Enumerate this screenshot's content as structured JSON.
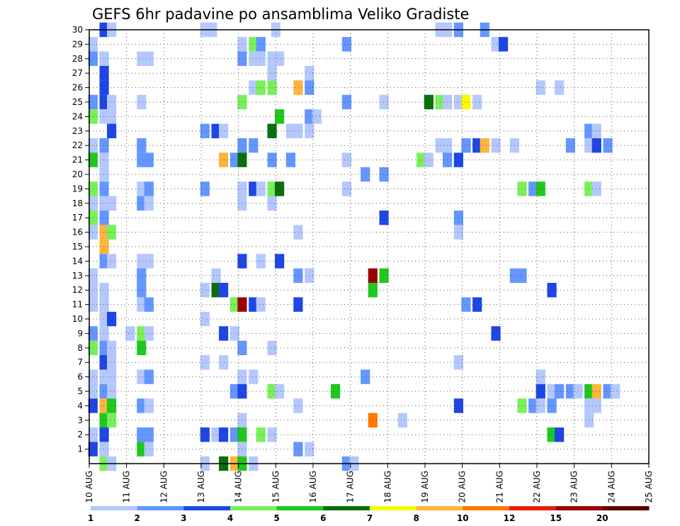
{
  "chart_data": {
    "type": "heatmap",
    "title": "GEFS 6hr padavine po ansamblima Veliko Gradiste",
    "x_tick_labels": [
      "10 AUG",
      "11 AUG",
      "12 AUG",
      "13 AUG",
      "14 AUG",
      "15 AUG",
      "16 AUG",
      "17 AUG",
      "18 AUG",
      "19 AUG",
      "20 AUG",
      "21 AUG",
      "22 AUG",
      "23 AUG",
      "24 AUG",
      "25 AUG"
    ],
    "x_range_days": [
      10,
      25
    ],
    "y_tick_labels": [
      "1",
      "2",
      "3",
      "4",
      "5",
      "6",
      "7",
      "8",
      "9",
      "10",
      "11",
      "12",
      "13",
      "14",
      "15",
      "16",
      "17",
      "18",
      "19",
      "20",
      "21",
      "22",
      "23",
      "24",
      "25",
      "26",
      "27",
      "28",
      "29",
      "30"
    ],
    "y_range": [
      0,
      30
    ],
    "grid": true,
    "colorbar": {
      "labels": [
        "1",
        "2",
        "3",
        "4",
        "5",
        "6",
        "7",
        "8",
        "10",
        "12",
        "15",
        "20"
      ],
      "colors": [
        "#b4c8ff",
        "#6496ff",
        "#1e46e6",
        "#78f05a",
        "#1ec81e",
        "#0a6e0a",
        "#fafa00",
        "#ffb43c",
        "#ff7800",
        "#e61e00",
        "#9b0000",
        "#5a0000"
      ]
    },
    "cells": [
      [
        10.4,
        30,
        2
      ],
      [
        10.6,
        30,
        0
      ],
      [
        13.1,
        30,
        0
      ],
      [
        13.3,
        30,
        0
      ],
      [
        15.0,
        30,
        0
      ],
      [
        19.4,
        30,
        0
      ],
      [
        19.6,
        30,
        0
      ],
      [
        19.9,
        30,
        1
      ],
      [
        20.6,
        30,
        1
      ],
      [
        10.1,
        29,
        0
      ],
      [
        14.1,
        29,
        0
      ],
      [
        14.4,
        29,
        3
      ],
      [
        14.6,
        29,
        1
      ],
      [
        16.9,
        29,
        1
      ],
      [
        20.9,
        29,
        0
      ],
      [
        21.1,
        29,
        2
      ],
      [
        10.1,
        28,
        1
      ],
      [
        10.4,
        28,
        0
      ],
      [
        11.4,
        28,
        0
      ],
      [
        11.6,
        28,
        0
      ],
      [
        14.1,
        28,
        1
      ],
      [
        14.4,
        28,
        0
      ],
      [
        14.6,
        28,
        0
      ],
      [
        14.9,
        28,
        0
      ],
      [
        15.1,
        28,
        0
      ],
      [
        10.4,
        27,
        2
      ],
      [
        14.9,
        27,
        0
      ],
      [
        15.9,
        27,
        0
      ],
      [
        10.4,
        26,
        2
      ],
      [
        14.4,
        26,
        0
      ],
      [
        14.6,
        26,
        3
      ],
      [
        14.9,
        26,
        3
      ],
      [
        15.6,
        26,
        7
      ],
      [
        15.9,
        26,
        1
      ],
      [
        22.1,
        26,
        0
      ],
      [
        22.6,
        26,
        0
      ],
      [
        10.1,
        25,
        1
      ],
      [
        10.4,
        25,
        2
      ],
      [
        10.6,
        25,
        0
      ],
      [
        11.4,
        25,
        0
      ],
      [
        14.1,
        25,
        3
      ],
      [
        16.9,
        25,
        1
      ],
      [
        17.9,
        25,
        0
      ],
      [
        19.1,
        25,
        5
      ],
      [
        19.4,
        25,
        3
      ],
      [
        19.6,
        25,
        0
      ],
      [
        19.9,
        25,
        0
      ],
      [
        20.1,
        25,
        6
      ],
      [
        20.4,
        25,
        0
      ],
      [
        10.1,
        24,
        3
      ],
      [
        10.4,
        24,
        0
      ],
      [
        10.6,
        24,
        0
      ],
      [
        15.1,
        24,
        4
      ],
      [
        15.9,
        24,
        1
      ],
      [
        16.1,
        24,
        0
      ],
      [
        10.6,
        23,
        2
      ],
      [
        13.1,
        23,
        1
      ],
      [
        13.4,
        23,
        2
      ],
      [
        13.6,
        23,
        0
      ],
      [
        14.9,
        23,
        5
      ],
      [
        15.4,
        23,
        0
      ],
      [
        15.6,
        23,
        0
      ],
      [
        15.9,
        23,
        0
      ],
      [
        23.4,
        23,
        1
      ],
      [
        23.6,
        23,
        0
      ],
      [
        10.1,
        22,
        0
      ],
      [
        10.4,
        22,
        1
      ],
      [
        11.4,
        22,
        1
      ],
      [
        14.1,
        22,
        1
      ],
      [
        14.4,
        22,
        1
      ],
      [
        19.4,
        22,
        0
      ],
      [
        19.6,
        22,
        0
      ],
      [
        20.1,
        22,
        1
      ],
      [
        20.4,
        22,
        2
      ],
      [
        20.6,
        22,
        7
      ],
      [
        20.9,
        22,
        0
      ],
      [
        21.4,
        22,
        0
      ],
      [
        22.9,
        22,
        1
      ],
      [
        23.4,
        22,
        0
      ],
      [
        23.6,
        22,
        2
      ],
      [
        23.9,
        22,
        1
      ],
      [
        10.1,
        21,
        4
      ],
      [
        10.4,
        21,
        0
      ],
      [
        11.4,
        21,
        1
      ],
      [
        11.6,
        21,
        1
      ],
      [
        13.6,
        21,
        7
      ],
      [
        13.9,
        21,
        1
      ],
      [
        14.1,
        21,
        5
      ],
      [
        14.9,
        21,
        1
      ],
      [
        15.4,
        21,
        1
      ],
      [
        16.9,
        21,
        0
      ],
      [
        18.9,
        21,
        3
      ],
      [
        19.1,
        21,
        0
      ],
      [
        19.6,
        21,
        1
      ],
      [
        19.9,
        21,
        2
      ],
      [
        10.4,
        20,
        0
      ],
      [
        17.4,
        20,
        1
      ],
      [
        17.9,
        20,
        1
      ],
      [
        10.1,
        19,
        3
      ],
      [
        10.4,
        19,
        1
      ],
      [
        11.4,
        19,
        0
      ],
      [
        11.6,
        19,
        1
      ],
      [
        13.1,
        19,
        1
      ],
      [
        14.1,
        19,
        0
      ],
      [
        14.4,
        19,
        2
      ],
      [
        14.6,
        19,
        0
      ],
      [
        14.9,
        19,
        3
      ],
      [
        15.1,
        19,
        5
      ],
      [
        16.9,
        19,
        0
      ],
      [
        21.6,
        19,
        3
      ],
      [
        21.9,
        19,
        1
      ],
      [
        22.1,
        19,
        4
      ],
      [
        23.4,
        19,
        3
      ],
      [
        23.6,
        19,
        0
      ],
      [
        10.1,
        18,
        0
      ],
      [
        10.4,
        18,
        0
      ],
      [
        10.6,
        18,
        0
      ],
      [
        11.4,
        18,
        1
      ],
      [
        11.6,
        18,
        0
      ],
      [
        14.1,
        18,
        0
      ],
      [
        14.9,
        18,
        0
      ],
      [
        10.1,
        17,
        3
      ],
      [
        10.4,
        17,
        1
      ],
      [
        17.9,
        17,
        2
      ],
      [
        19.9,
        17,
        1
      ],
      [
        10.1,
        16,
        0
      ],
      [
        10.4,
        16,
        7
      ],
      [
        10.6,
        16,
        3
      ],
      [
        15.6,
        16,
        0
      ],
      [
        19.9,
        16,
        0
      ],
      [
        10.4,
        15,
        7
      ],
      [
        10.4,
        14,
        1
      ],
      [
        10.6,
        14,
        0
      ],
      [
        11.4,
        14,
        0
      ],
      [
        11.6,
        14,
        0
      ],
      [
        14.1,
        14,
        2
      ],
      [
        14.6,
        14,
        0
      ],
      [
        15.1,
        14,
        2
      ],
      [
        10.1,
        13,
        0
      ],
      [
        11.4,
        13,
        1
      ],
      [
        13.4,
        13,
        0
      ],
      [
        15.6,
        13,
        1
      ],
      [
        15.9,
        13,
        0
      ],
      [
        17.6,
        13,
        10
      ],
      [
        17.9,
        13,
        4
      ],
      [
        21.4,
        13,
        1
      ],
      [
        21.6,
        13,
        1
      ],
      [
        10.1,
        12,
        0
      ],
      [
        10.4,
        12,
        0
      ],
      [
        11.4,
        12,
        1
      ],
      [
        13.1,
        12,
        0
      ],
      [
        13.4,
        12,
        5
      ],
      [
        13.6,
        12,
        2
      ],
      [
        17.6,
        12,
        4
      ],
      [
        22.4,
        12,
        2
      ],
      [
        10.1,
        11,
        0
      ],
      [
        10.4,
        11,
        0
      ],
      [
        11.4,
        11,
        0
      ],
      [
        11.6,
        11,
        1
      ],
      [
        13.9,
        11,
        3
      ],
      [
        14.1,
        11,
        10
      ],
      [
        14.4,
        11,
        2
      ],
      [
        14.6,
        11,
        0
      ],
      [
        15.6,
        11,
        2
      ],
      [
        20.1,
        11,
        1
      ],
      [
        20.4,
        11,
        2
      ],
      [
        10.4,
        10,
        0
      ],
      [
        10.6,
        10,
        2
      ],
      [
        13.1,
        10,
        0
      ],
      [
        10.1,
        9,
        1
      ],
      [
        10.4,
        9,
        0
      ],
      [
        11.1,
        9,
        0
      ],
      [
        11.4,
        9,
        3
      ],
      [
        11.6,
        9,
        0
      ],
      [
        13.6,
        9,
        2
      ],
      [
        13.9,
        9,
        0
      ],
      [
        20.9,
        9,
        2
      ],
      [
        10.1,
        8,
        3
      ],
      [
        10.4,
        8,
        1
      ],
      [
        10.6,
        8,
        0
      ],
      [
        11.4,
        8,
        4
      ],
      [
        14.1,
        8,
        1
      ],
      [
        14.9,
        8,
        0
      ],
      [
        10.4,
        7,
        2
      ],
      [
        10.6,
        7,
        0
      ],
      [
        13.1,
        7,
        0
      ],
      [
        13.6,
        7,
        0
      ],
      [
        19.9,
        7,
        0
      ],
      [
        10.1,
        6,
        0
      ],
      [
        10.4,
        6,
        0
      ],
      [
        10.6,
        6,
        0
      ],
      [
        11.4,
        6,
        0
      ],
      [
        11.6,
        6,
        1
      ],
      [
        14.1,
        6,
        0
      ],
      [
        14.4,
        6,
        0
      ],
      [
        17.4,
        6,
        1
      ],
      [
        22.1,
        6,
        0
      ],
      [
        10.1,
        5,
        0
      ],
      [
        10.4,
        5,
        1
      ],
      [
        10.6,
        5,
        0
      ],
      [
        13.9,
        5,
        1
      ],
      [
        14.1,
        5,
        2
      ],
      [
        14.9,
        5,
        3
      ],
      [
        15.1,
        5,
        0
      ],
      [
        16.6,
        5,
        4
      ],
      [
        22.1,
        5,
        2
      ],
      [
        22.4,
        5,
        0
      ],
      [
        22.6,
        5,
        1
      ],
      [
        22.9,
        5,
        1
      ],
      [
        23.1,
        5,
        0
      ],
      [
        23.4,
        5,
        4
      ],
      [
        23.6,
        5,
        7
      ],
      [
        23.9,
        5,
        1
      ],
      [
        24.1,
        5,
        0
      ],
      [
        10.1,
        4,
        2
      ],
      [
        10.4,
        4,
        7
      ],
      [
        10.6,
        4,
        4
      ],
      [
        11.4,
        4,
        1
      ],
      [
        11.6,
        4,
        0
      ],
      [
        15.6,
        4,
        0
      ],
      [
        19.9,
        4,
        2
      ],
      [
        21.6,
        4,
        3
      ],
      [
        21.9,
        4,
        1
      ],
      [
        22.1,
        4,
        0
      ],
      [
        22.4,
        4,
        1
      ],
      [
        23.4,
        4,
        0
      ],
      [
        23.6,
        4,
        0
      ],
      [
        10.4,
        3,
        4
      ],
      [
        10.6,
        3,
        3
      ],
      [
        14.1,
        3,
        0
      ],
      [
        17.6,
        3,
        8
      ],
      [
        18.4,
        3,
        0
      ],
      [
        23.4,
        3,
        0
      ],
      [
        10.1,
        2,
        0
      ],
      [
        10.4,
        2,
        2
      ],
      [
        11.4,
        2,
        1
      ],
      [
        11.6,
        2,
        1
      ],
      [
        13.1,
        2,
        2
      ],
      [
        13.4,
        2,
        0
      ],
      [
        13.6,
        2,
        2
      ],
      [
        13.9,
        2,
        1
      ],
      [
        14.1,
        2,
        4
      ],
      [
        14.6,
        2,
        3
      ],
      [
        14.9,
        2,
        0
      ],
      [
        22.4,
        2,
        4
      ],
      [
        22.6,
        2,
        2
      ],
      [
        10.1,
        1,
        2
      ],
      [
        10.4,
        1,
        0
      ],
      [
        11.4,
        1,
        4
      ],
      [
        11.6,
        1,
        0
      ],
      [
        14.1,
        1,
        0
      ],
      [
        15.6,
        1,
        1
      ],
      [
        15.9,
        1,
        0
      ],
      [
        10.4,
        0,
        3
      ],
      [
        10.6,
        0,
        0
      ],
      [
        13.1,
        0,
        0
      ],
      [
        13.6,
        0,
        5
      ],
      [
        13.9,
        0,
        7
      ],
      [
        14.1,
        0,
        4
      ],
      [
        14.4,
        0,
        0
      ],
      [
        16.9,
        0,
        1
      ],
      [
        17.1,
        0,
        0
      ]
    ]
  }
}
